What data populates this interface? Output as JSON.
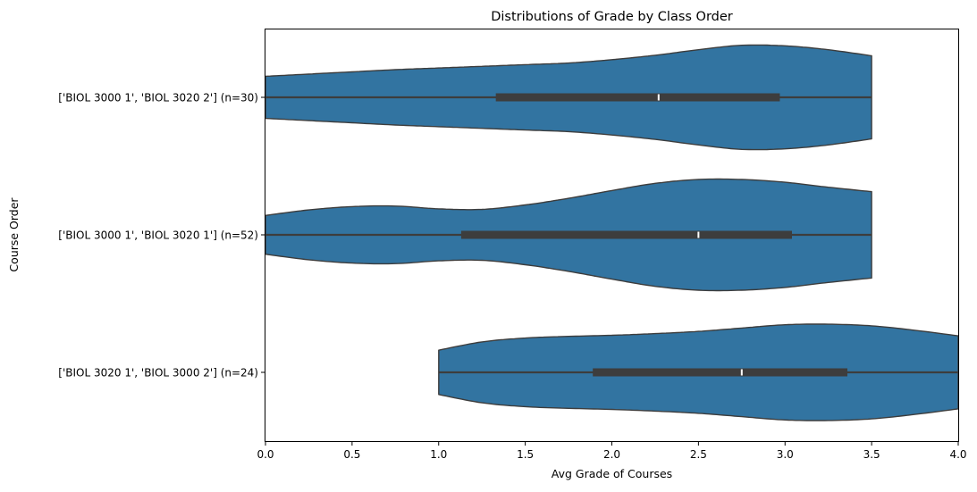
{
  "chart_data": {
    "type": "violin",
    "orientation": "horizontal",
    "title": "Distributions of Grade by Class Order",
    "xlabel": "Avg Grade of Courses",
    "ylabel": "Course Order",
    "xlim": [
      0.0,
      4.0
    ],
    "xticks": [
      "0.0",
      "0.5",
      "1.0",
      "1.5",
      "2.0",
      "2.5",
      "3.0",
      "3.5",
      "4.0"
    ],
    "grid": false,
    "legend": "none",
    "colors": {
      "fill": "#3274a1",
      "outline": "#3d3d3d",
      "box": "#3d3d3d",
      "median": "#ffffff",
      "frame": "#000000"
    },
    "categories": [
      "['BIOL 3000 1', 'BIOL 3020 2'] (n=30)",
      "['BIOL 3000 1', 'BIOL 3020 1'] (n=52)",
      "['BIOL 3020 1', 'BIOL 3000 2'] (n=24)"
    ],
    "series": [
      {
        "min": 0.0,
        "q1": 1.33,
        "median": 2.27,
        "q3": 2.97,
        "max": 3.5,
        "density": [
          [
            0.0,
            0.38
          ],
          [
            0.25,
            0.42
          ],
          [
            0.5,
            0.46
          ],
          [
            0.75,
            0.5
          ],
          [
            1.0,
            0.53
          ],
          [
            1.25,
            0.56
          ],
          [
            1.5,
            0.59
          ],
          [
            1.75,
            0.62
          ],
          [
            2.0,
            0.68
          ],
          [
            2.25,
            0.76
          ],
          [
            2.5,
            0.86
          ],
          [
            2.75,
            0.94
          ],
          [
            3.0,
            0.93
          ],
          [
            3.25,
            0.86
          ],
          [
            3.5,
            0.75
          ]
        ]
      },
      {
        "min": 0.0,
        "q1": 1.13,
        "median": 2.5,
        "q3": 3.04,
        "max": 3.5,
        "density": [
          [
            0.0,
            0.35
          ],
          [
            0.25,
            0.45
          ],
          [
            0.5,
            0.51
          ],
          [
            0.75,
            0.52
          ],
          [
            1.0,
            0.47
          ],
          [
            1.25,
            0.46
          ],
          [
            1.5,
            0.54
          ],
          [
            1.75,
            0.66
          ],
          [
            2.0,
            0.8
          ],
          [
            2.25,
            0.93
          ],
          [
            2.5,
            1.0
          ],
          [
            2.75,
            1.0
          ],
          [
            3.0,
            0.95
          ],
          [
            3.25,
            0.86
          ],
          [
            3.5,
            0.78
          ]
        ]
      },
      {
        "min": 1.0,
        "q1": 1.89,
        "median": 2.75,
        "q3": 3.36,
        "max": 4.0,
        "density": [
          [
            1.0,
            0.4
          ],
          [
            1.25,
            0.55
          ],
          [
            1.5,
            0.62
          ],
          [
            1.75,
            0.65
          ],
          [
            2.0,
            0.67
          ],
          [
            2.25,
            0.7
          ],
          [
            2.5,
            0.74
          ],
          [
            2.75,
            0.8
          ],
          [
            3.0,
            0.86
          ],
          [
            3.25,
            0.87
          ],
          [
            3.5,
            0.84
          ],
          [
            3.75,
            0.76
          ],
          [
            4.0,
            0.66
          ]
        ]
      }
    ]
  }
}
